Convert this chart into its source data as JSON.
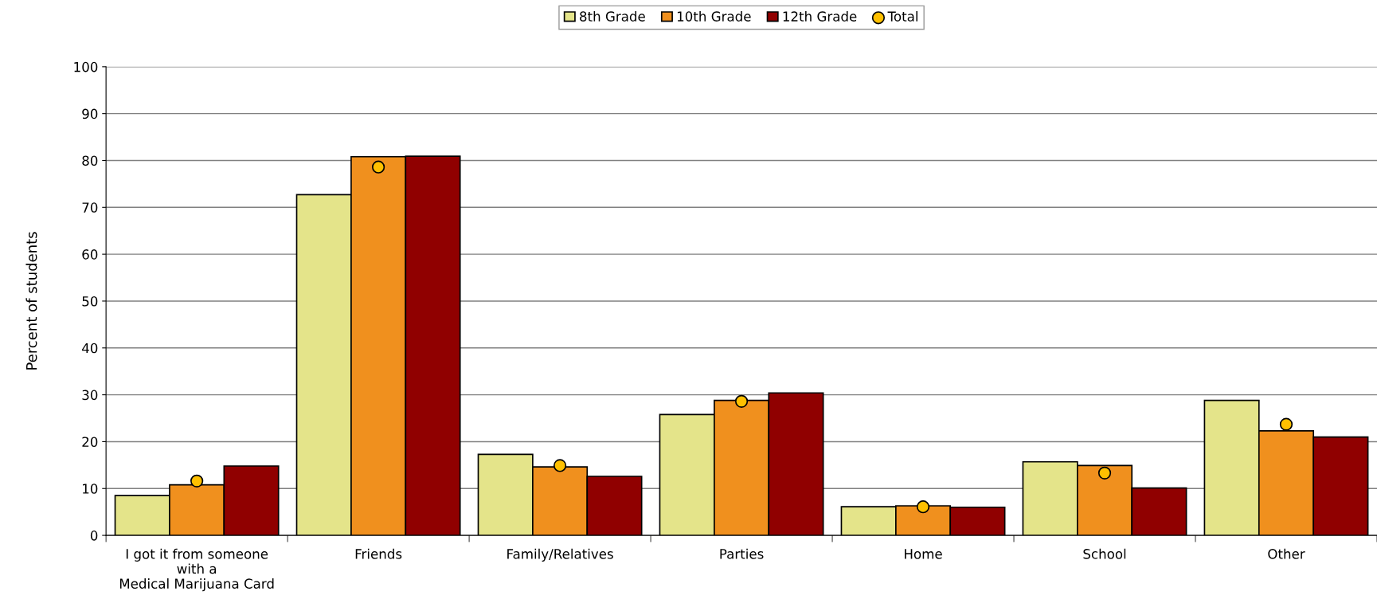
{
  "chart_data": {
    "type": "bar",
    "ylabel": "Percent of students",
    "categories": [
      "I got it from someone\nwith a\nMedical Marijuana Card",
      "Friends",
      "Family/Relatives",
      "Parties",
      "Home",
      "School",
      "Other"
    ],
    "series": [
      {
        "name": "8th Grade",
        "color": "#e4e48a",
        "values": [
          8.5,
          72.7,
          17.3,
          25.8,
          6.1,
          15.7,
          28.8
        ]
      },
      {
        "name": "10th Grade",
        "color": "#f0901e",
        "values": [
          10.8,
          80.8,
          14.6,
          28.8,
          6.3,
          14.9,
          22.3
        ]
      },
      {
        "name": "12th Grade",
        "color": "#900000",
        "values": [
          14.8,
          80.9,
          12.6,
          30.4,
          6.0,
          10.1,
          21.0
        ]
      },
      {
        "name": "Total",
        "type": "scatter",
        "color": "#ffc000",
        "marker": "circle",
        "values": [
          11.6,
          78.6,
          14.9,
          28.6,
          6.1,
          13.3,
          23.7
        ]
      }
    ],
    "ylim": [
      0,
      100
    ],
    "yticks": [
      0,
      10,
      20,
      30,
      40,
      50,
      60,
      70,
      80,
      90,
      100
    ],
    "grid": "y",
    "legend": "top"
  }
}
